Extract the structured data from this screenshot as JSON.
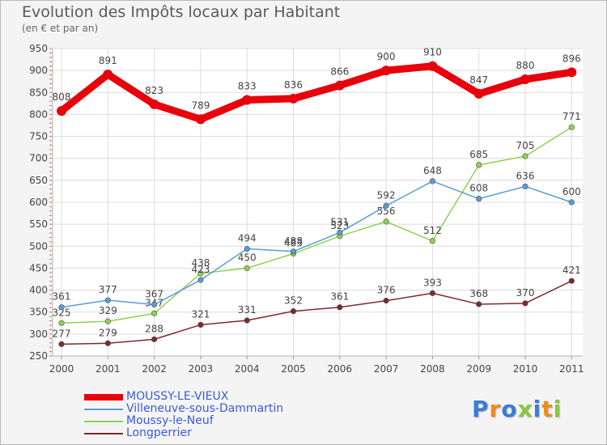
{
  "chart_data": {
    "type": "line",
    "title": "Evolution des Impôts locaux par Habitant",
    "subtitle": "(en € et par an)",
    "xlabel": "",
    "ylabel": "",
    "x": [
      "2000",
      "2001",
      "2002",
      "2003",
      "2004",
      "2005",
      "2006",
      "2007",
      "2008",
      "2009",
      "2010",
      "2011"
    ],
    "ylim": [
      250,
      950
    ],
    "yticks": [
      "250",
      "300",
      "350",
      "400",
      "450",
      "500",
      "550",
      "600",
      "650",
      "700",
      "750",
      "800",
      "850",
      "900",
      "950"
    ],
    "grid": true,
    "legend_position": "bottom-left",
    "series": [
      {
        "name": "MOUSSY-LE-VIEUX",
        "color": "#e8000b",
        "values": [
          808,
          891,
          823,
          789,
          833,
          836,
          866,
          900,
          910,
          847,
          880,
          896
        ],
        "labels": [
          "808",
          "891",
          "823",
          "789",
          "833",
          "836",
          "866",
          "900",
          "910",
          "847",
          "880",
          "896"
        ]
      },
      {
        "name": "Villeneuve-sous-Dammartin",
        "color": "#5b9bd5",
        "values": [
          361,
          377,
          367,
          423,
          494,
          488,
          531,
          592,
          648,
          608,
          636,
          600
        ],
        "labels": [
          "361",
          "377",
          "367",
          "423",
          "494",
          "488",
          "531",
          "592",
          "648",
          "608",
          "636",
          "600"
        ]
      },
      {
        "name": "Moussy-le-Neuf",
        "color": "#8fd14f",
        "values": [
          325,
          329,
          347,
          438,
          450,
          483,
          523,
          556,
          512,
          685,
          705,
          771
        ],
        "labels": [
          "325",
          "329",
          "347",
          "438",
          "450",
          "483",
          "523",
          "556",
          "512",
          "685",
          "705",
          "771"
        ]
      },
      {
        "name": "Longperrier",
        "color": "#7a2b2b",
        "values": [
          277,
          279,
          288,
          321,
          331,
          352,
          361,
          376,
          393,
          368,
          370,
          421
        ],
        "labels": [
          "277",
          "279",
          "288",
          "321",
          "331",
          "352",
          "361",
          "376",
          "393",
          "368",
          "370",
          "421"
        ]
      }
    ]
  },
  "brand": {
    "letters": [
      "P",
      "r",
      "o",
      "x",
      "i",
      "t",
      "i"
    ],
    "colors": [
      "#3b7dd8",
      "#f08a1c",
      "#3b7dd8",
      "#8cc63f",
      "#3b7dd8",
      "#f08a1c",
      "#8cc63f"
    ]
  }
}
